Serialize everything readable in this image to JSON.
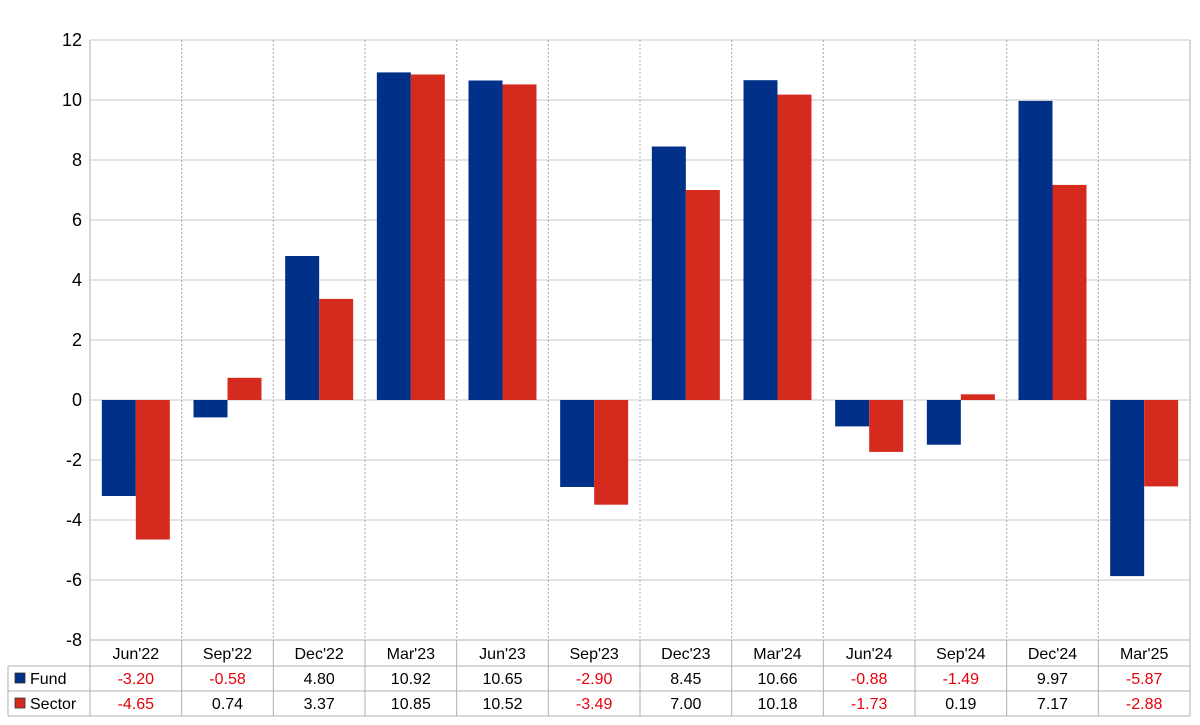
{
  "chart_data": {
    "type": "bar",
    "categories": [
      "Jun'22",
      "Sep'22",
      "Dec'22",
      "Mar'23",
      "Jun'23",
      "Sep'23",
      "Dec'23",
      "Mar'24",
      "Jun'24",
      "Sep'24",
      "Dec'24",
      "Mar'25"
    ],
    "series": [
      {
        "name": "Fund",
        "color": "#003087",
        "values": [
          -3.2,
          -0.58,
          4.8,
          10.92,
          10.65,
          -2.9,
          8.45,
          10.66,
          -0.88,
          -1.49,
          9.97,
          -5.87
        ],
        "labels": [
          "-3.20",
          "-0.58",
          "4.80",
          "10.92",
          "10.65",
          "-2.90",
          "8.45",
          "10.66",
          "-0.88",
          "-1.49",
          "9.97",
          "-5.87"
        ]
      },
      {
        "name": "Sector",
        "color": "#d52b1e",
        "values": [
          -4.65,
          0.74,
          3.37,
          10.85,
          10.52,
          -3.49,
          7.0,
          10.18,
          -1.73,
          0.19,
          7.17,
          -2.88
        ],
        "labels": [
          "-4.65",
          "0.74",
          "3.37",
          "10.85",
          "10.52",
          "-3.49",
          "7.00",
          "10.18",
          "-1.73",
          "0.19",
          "7.17",
          "-2.88"
        ]
      }
    ],
    "yticks": [
      -8,
      -6,
      -4,
      -2,
      0,
      2,
      4,
      6,
      8,
      10,
      12
    ],
    "ylim": [
      -8,
      12
    ],
    "grid": true,
    "negative_label_color": "#e8000b",
    "positive_label_color": "#000000",
    "legend": "data-table-left"
  }
}
